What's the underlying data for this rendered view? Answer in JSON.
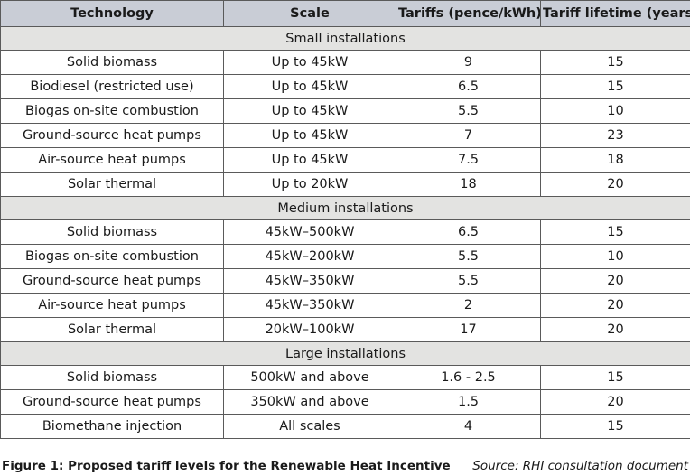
{
  "table": {
    "headers": [
      "Technology",
      "Scale",
      "Tariffs (pence/kWh)",
      "Tariff lifetime (years)"
    ],
    "sections": [
      {
        "title": "Small installations",
        "rows": [
          [
            "Solid biomass",
            "Up to 45kW",
            "9",
            "15"
          ],
          [
            "Biodiesel (restricted use)",
            "Up to 45kW",
            "6.5",
            "15"
          ],
          [
            "Biogas on-site combustion",
            "Up to 45kW",
            "5.5",
            "10"
          ],
          [
            "Ground-source heat pumps",
            "Up to 45kW",
            "7",
            "23"
          ],
          [
            "Air-source heat pumps",
            "Up to 45kW",
            "7.5",
            "18"
          ],
          [
            "Solar thermal",
            "Up to 20kW",
            "18",
            "20"
          ]
        ]
      },
      {
        "title": "Medium installations",
        "rows": [
          [
            "Solid biomass",
            "45kW–500kW",
            "6.5",
            "15"
          ],
          [
            "Biogas on-site combustion",
            "45kW–200kW",
            "5.5",
            "10"
          ],
          [
            "Ground-source heat pumps",
            "45kW–350kW",
            "5.5",
            "20"
          ],
          [
            "Air-source heat pumps",
            "45kW–350kW",
            "2",
            "20"
          ],
          [
            "Solar thermal",
            "20kW–100kW",
            "17",
            "20"
          ]
        ]
      },
      {
        "title": "Large installations",
        "rows": [
          [
            "Solid biomass",
            "500kW and above",
            "1.6 - 2.5",
            "15"
          ],
          [
            "Ground-source heat pumps",
            "350kW and above",
            "1.5",
            "20"
          ],
          [
            "Biomethane injection",
            "All scales",
            "4",
            "15"
          ]
        ]
      }
    ]
  },
  "caption": {
    "figure": "Figure 1: Proposed tariff levels for the Renewable Heat Incentive",
    "source": "Source: RHI consultation document"
  },
  "colors": {
    "header_bg": "#c9cdd6",
    "section_bg": "#e3e3e1",
    "border": "#5a5a5a"
  }
}
